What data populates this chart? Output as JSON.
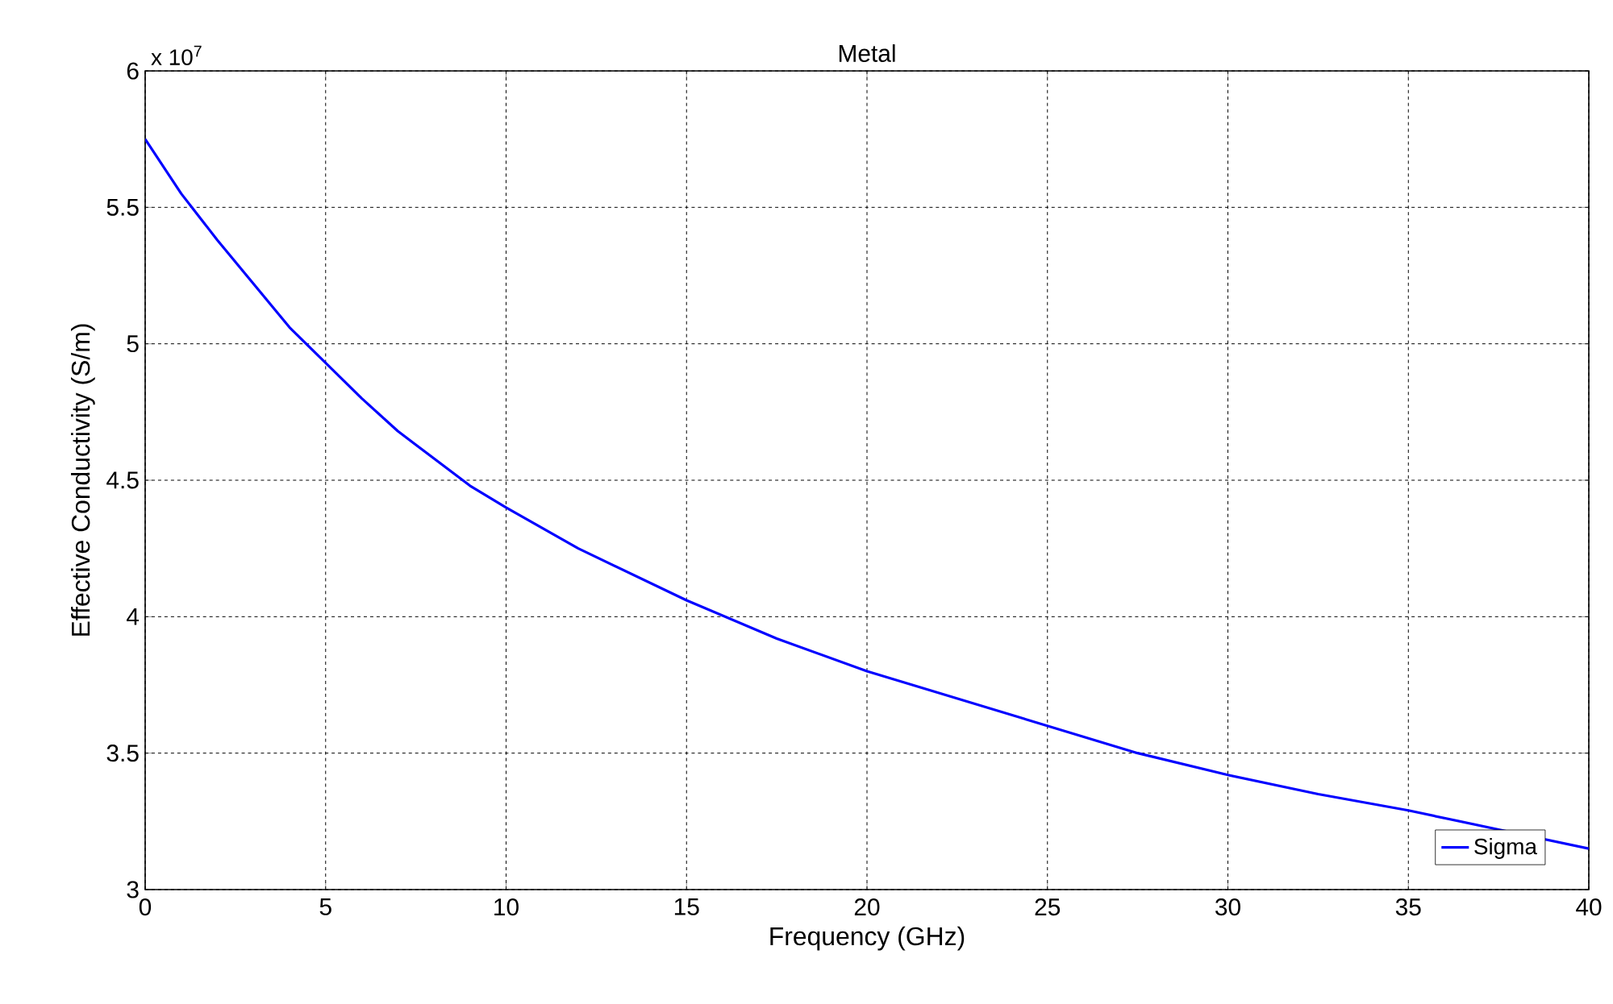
{
  "chart_data": {
    "type": "line",
    "title": "Metal",
    "xlabel": "Frequency (GHz)",
    "ylabel": "Effective Conductivity (S/m)",
    "annotations": [
      "x 10$^{7}$"
    ],
    "x": [
      0,
      1,
      2,
      3,
      4,
      5,
      6,
      7,
      8,
      9,
      10,
      12,
      15,
      17.5,
      20,
      22.5,
      25,
      27.5,
      30,
      32.5,
      35,
      37.5,
      40
    ],
    "series": [
      {
        "name": "Sigma",
        "color": "#0000ff",
        "values": [
          5.75,
          5.55,
          5.38,
          5.22,
          5.06,
          4.93,
          4.8,
          4.68,
          4.58,
          4.48,
          4.4,
          4.25,
          4.06,
          3.92,
          3.8,
          3.7,
          3.6,
          3.5,
          3.42,
          3.35,
          3.29,
          3.22,
          3.15
        ]
      }
    ],
    "xlim": [
      0,
      40
    ],
    "ylim": [
      3,
      6
    ],
    "xticks": [
      0,
      5,
      10,
      15,
      20,
      25,
      30,
      35,
      40
    ],
    "yticks": [
      3,
      3.5,
      4,
      4.5,
      5,
      5.5,
      6
    ],
    "grid": true,
    "legend": "bottom right",
    "marker": "none",
    "line_style": "solid"
  }
}
